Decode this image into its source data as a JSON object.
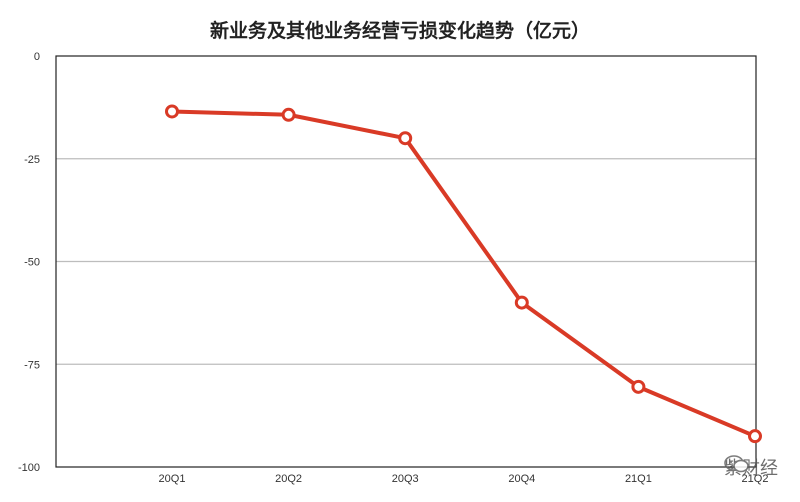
{
  "chart_data": {
    "type": "line",
    "title": "新业务及其他业务经营亏损变化趋势（亿元）",
    "categories": [
      "20Q1",
      "20Q2",
      "20Q3",
      "20Q4",
      "21Q1",
      "21Q2"
    ],
    "series": [
      {
        "values": [
          -13.5,
          -14.3,
          -20,
          -60,
          -80.5,
          -92.5
        ]
      }
    ],
    "ylim": [
      -100,
      0
    ],
    "yticks": [
      0,
      -25,
      -50,
      -75,
      -100
    ],
    "grid": true,
    "colors": {
      "line": "#d93a26",
      "marker_fill": "#ffffff",
      "grid": "#bdbdbd",
      "axis": "#222222"
    }
  },
  "watermark": {
    "text": "紫财经",
    "icon": "wechat-icon"
  }
}
